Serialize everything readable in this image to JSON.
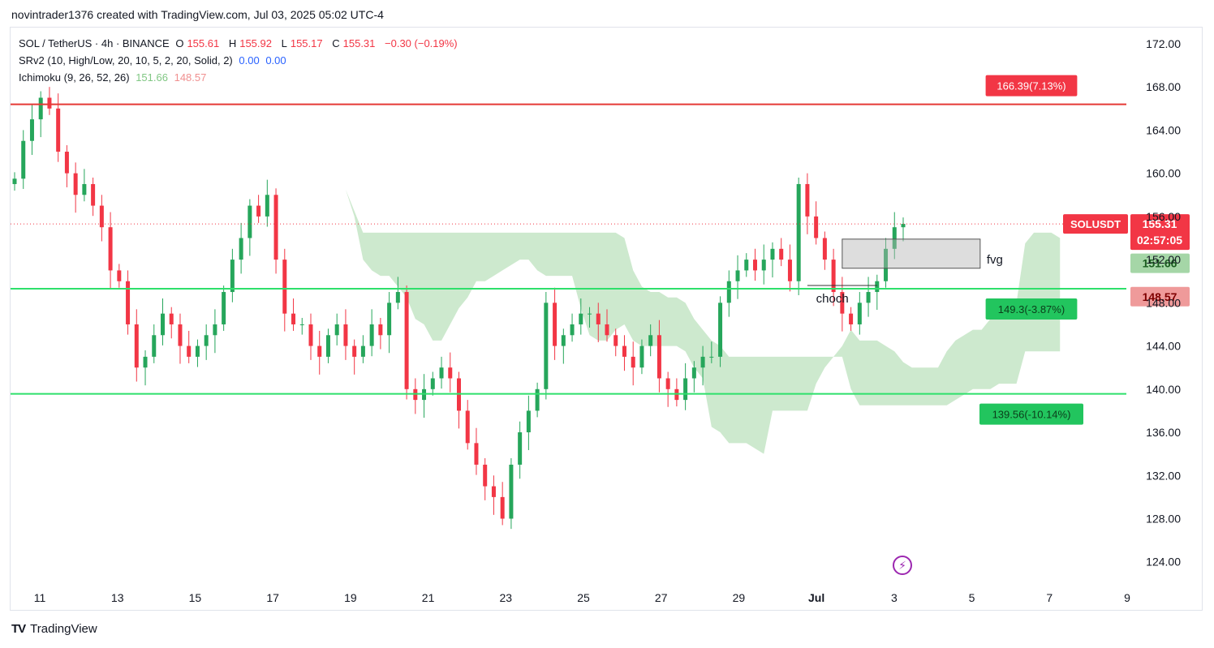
{
  "caption": "novintrader1376 created with TradingView.com, Jul 03, 2025 05:02 UTC-4",
  "legend": {
    "symbol": "SOL / TetherUS · 4h · BINANCE",
    "ohlc": {
      "o_label": "O",
      "o": "155.61",
      "h_label": "H",
      "h": "155.92",
      "l_label": "L",
      "l": "155.17",
      "c_label": "C",
      "c": "155.31",
      "change": "−0.30 (−0.19%)"
    },
    "srv2": {
      "name": "SRv2 (10, High/Low, 20, 10, 5, 2, 20, Solid, 2)",
      "v1": "0.00",
      "v2": "0.00"
    },
    "ichimoku": {
      "name": "Ichimoku (9, 26, 52, 26)",
      "v1": "151.66",
      "v2": "148.57"
    }
  },
  "footer": {
    "brand": "TradingView"
  },
  "colors": {
    "up": "#26a65b",
    "down": "#f23645",
    "green_line": "#2ee06b",
    "red_line": "#e53935",
    "cloud_green": "rgba(76,175,80,0.28)",
    "cloud_red": "rgba(242,54,69,0.30)"
  },
  "icons": [
    "tradingview-logo-icon",
    "lightning-bolt-icon"
  ],
  "chart_data": {
    "type": "candlestick",
    "y_axis": {
      "ticks": [
        "172.00",
        "168.00",
        "164.00",
        "160.00",
        "156.00",
        "152.00",
        "148.00",
        "144.00",
        "140.00",
        "136.00",
        "132.00",
        "128.00",
        "124.00"
      ],
      "range": [
        121.5,
        173.5
      ]
    },
    "x_axis": {
      "ticks": [
        "11",
        "13",
        "15",
        "17",
        "19",
        "21",
        "23",
        "25",
        "27",
        "29",
        "Jul",
        "3",
        "5",
        "7",
        "9"
      ]
    },
    "horizontal_lines": [
      {
        "price": 166.39,
        "color": "red",
        "label": "166.39(7.13%)"
      },
      {
        "price": 149.3,
        "color": "green",
        "label": "149.3(-3.87%)"
      },
      {
        "price": 139.56,
        "color": "green",
        "label": "139.56(-10.14%)"
      }
    ],
    "price_tags": [
      {
        "name": "SOLUSDT",
        "value": "155.31",
        "countdown": "02:57:05"
      },
      {
        "value": "151.66",
        "kind": "ichimoku-a"
      },
      {
        "value": "148.57",
        "kind": "ichimoku-b"
      }
    ],
    "annotations": [
      {
        "text": "fvg"
      },
      {
        "text": "choch"
      }
    ],
    "series_close": [
      159.5,
      163,
      165,
      167,
      166,
      162,
      160,
      158,
      159,
      157,
      155,
      151,
      150,
      146,
      142,
      143,
      145,
      147,
      146,
      144,
      143,
      144,
      145,
      146,
      149,
      152,
      154,
      157,
      156,
      158,
      152,
      147,
      146,
      146,
      144,
      143,
      145,
      146,
      144,
      143,
      144,
      146,
      145,
      148,
      149,
      140,
      139,
      140,
      141,
      142,
      141,
      138,
      135,
      133,
      131,
      130,
      128,
      133,
      136,
      138,
      140,
      148,
      144,
      145,
      146,
      147,
      147,
      146,
      145,
      144,
      143,
      142,
      144,
      145,
      141,
      140,
      139,
      141,
      142,
      143,
      143,
      148,
      150,
      151,
      152,
      151,
      152,
      153,
      152,
      150,
      159,
      156,
      154,
      152,
      149,
      147,
      146,
      148,
      149,
      150,
      153,
      155,
      155.31
    ],
    "last_close": 155.31
  }
}
